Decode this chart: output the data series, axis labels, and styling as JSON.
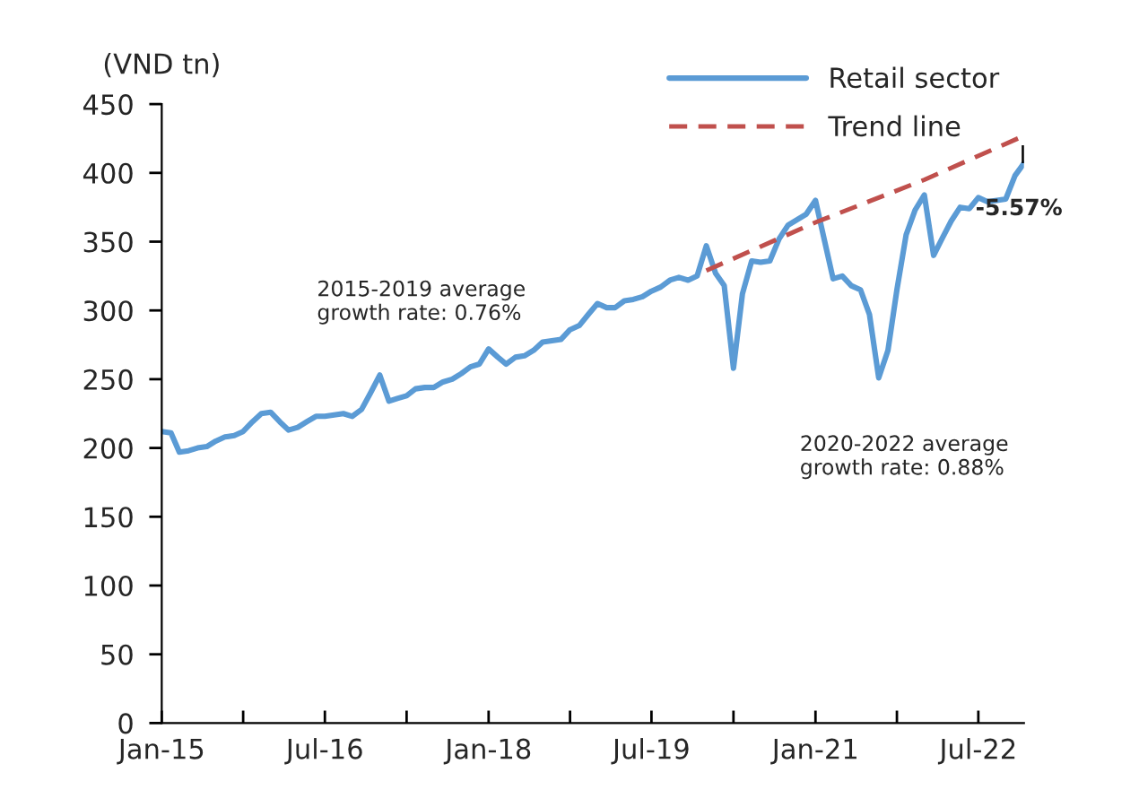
{
  "chart_data": {
    "type": "line",
    "ylabel": "(VND tn)",
    "x": [
      "2015-01",
      "2015-02",
      "2015-03",
      "2015-04",
      "2015-05",
      "2015-06",
      "2015-07",
      "2015-08",
      "2015-09",
      "2015-10",
      "2015-11",
      "2015-12",
      "2016-01",
      "2016-02",
      "2016-03",
      "2016-04",
      "2016-05",
      "2016-06",
      "2016-07",
      "2016-08",
      "2016-09",
      "2016-10",
      "2016-11",
      "2016-12",
      "2017-01",
      "2017-02",
      "2017-03",
      "2017-04",
      "2017-05",
      "2017-06",
      "2017-07",
      "2017-08",
      "2017-09",
      "2017-10",
      "2017-11",
      "2017-12",
      "2018-01",
      "2018-02",
      "2018-03",
      "2018-04",
      "2018-05",
      "2018-06",
      "2018-07",
      "2018-08",
      "2018-09",
      "2018-10",
      "2018-11",
      "2018-12",
      "2019-01",
      "2019-02",
      "2019-03",
      "2019-04",
      "2019-05",
      "2019-06",
      "2019-07",
      "2019-08",
      "2019-09",
      "2019-10",
      "2019-11",
      "2019-12",
      "2020-01",
      "2020-02",
      "2020-03",
      "2020-04",
      "2020-05",
      "2020-06",
      "2020-07",
      "2020-08",
      "2020-09",
      "2020-10",
      "2020-11",
      "2020-12",
      "2021-01",
      "2021-02",
      "2021-03",
      "2021-04",
      "2021-05",
      "2021-06",
      "2021-07",
      "2021-08",
      "2021-09",
      "2021-10",
      "2021-11",
      "2021-12",
      "2022-01",
      "2022-02",
      "2022-03",
      "2022-04",
      "2022-05",
      "2022-06",
      "2022-07",
      "2022-08",
      "2022-09",
      "2022-10",
      "2022-11",
      "2022-12"
    ],
    "series": [
      {
        "name": "Retail sector",
        "color": "#5b9bd5",
        "line_style": "solid",
        "values": [
          212,
          211,
          197,
          198,
          200,
          201,
          205,
          208,
          209,
          212,
          219,
          225,
          226,
          219,
          213,
          215,
          219,
          223,
          223,
          224,
          225,
          223,
          228,
          240,
          253,
          234,
          236,
          238,
          243,
          244,
          244,
          248,
          250,
          254,
          259,
          261,
          272,
          266,
          261,
          266,
          267,
          271,
          277,
          278,
          279,
          286,
          289,
          297,
          305,
          302,
          302,
          307,
          308,
          310,
          314,
          317,
          322,
          324,
          322,
          325,
          347,
          327,
          318,
          258,
          312,
          336,
          335,
          336,
          352,
          362,
          366,
          370,
          380,
          350,
          323,
          325,
          318,
          315,
          297,
          251,
          271,
          315,
          355,
          373,
          384,
          340,
          352,
          365,
          375,
          374,
          382,
          379,
          380,
          381,
          398,
          407
        ]
      },
      {
        "name": "Trend line",
        "color": "#c0504d",
        "line_style": "dashed",
        "x": [
          "2020-01",
          "2021-01",
          "2022-01",
          "2022-12"
        ],
        "values": [
          329,
          364,
          395,
          427
        ]
      },
      {
        "color": "#000000",
        "line_style": "dashed",
        "x": [
          "2022-12",
          "2022-12"
        ],
        "values": [
          407,
          427
        ]
      }
    ],
    "xlim": [
      "2015-01",
      "2022-12"
    ],
    "xticks": [
      {
        "value": "2015-01",
        "label": "Jan-15"
      },
      {
        "value": "2015-10",
        "label": null
      },
      {
        "value": "2016-07",
        "label": "Jul-16"
      },
      {
        "value": "2017-04",
        "label": null
      },
      {
        "value": "2018-01",
        "label": "Jan-18"
      },
      {
        "value": "2018-10",
        "label": null
      },
      {
        "value": "2019-07",
        "label": "Jul-19"
      },
      {
        "value": "2020-04",
        "label": null
      },
      {
        "value": "2021-01",
        "label": "Jan-21"
      },
      {
        "value": "2021-10",
        "label": null
      },
      {
        "value": "2022-07",
        "label": "Jul-22"
      }
    ],
    "ylim": [
      0,
      450
    ],
    "yticks": [
      0,
      50,
      100,
      150,
      200,
      250,
      300,
      350,
      400,
      450
    ],
    "grid": false,
    "legend": "top right",
    "marker": "none",
    "annotations": [
      "2015-2019 average\ngrowth rate: 0.76%",
      "2020-2022 average\ngrowth rate: 0.88%",
      {
        "text": "-5.57%",
        "x": "2022-12",
        "y": 407
      }
    ]
  }
}
